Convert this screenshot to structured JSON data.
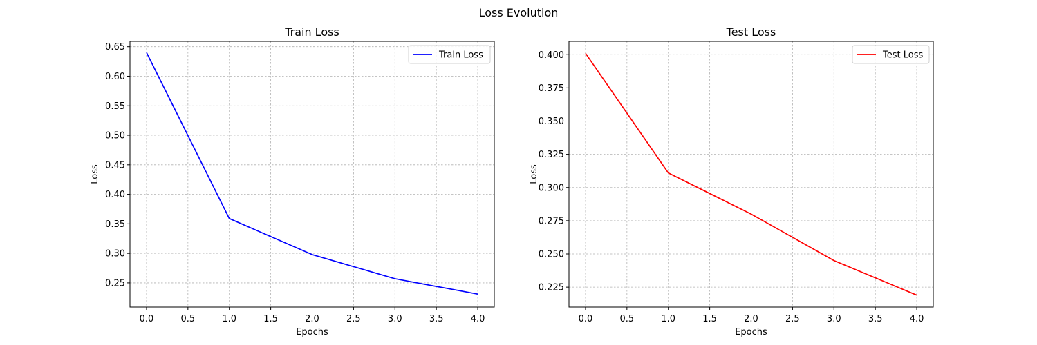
{
  "figure": {
    "title": "Loss Evolution"
  },
  "chart_data": [
    {
      "type": "line",
      "title": "Train Loss",
      "xlabel": "Epochs",
      "ylabel": "Loss",
      "xlim": [
        -0.2,
        4.2
      ],
      "ylim": [
        0.209,
        0.659
      ],
      "xticks": [
        0.0,
        0.5,
        1.0,
        1.5,
        2.0,
        2.5,
        3.0,
        3.5,
        4.0
      ],
      "xtick_labels": [
        "0.0",
        "0.5",
        "1.0",
        "1.5",
        "2.0",
        "2.5",
        "3.0",
        "3.5",
        "4.0"
      ],
      "yticks": [
        0.25,
        0.3,
        0.35,
        0.4,
        0.45,
        0.5,
        0.55,
        0.6,
        0.65
      ],
      "ytick_labels": [
        "0.25",
        "0.30",
        "0.35",
        "0.40",
        "0.45",
        "0.50",
        "0.55",
        "0.60",
        "0.65"
      ],
      "grid": true,
      "legend_position": "top-right",
      "series": [
        {
          "name": "Train Loss",
          "color": "#0000ff",
          "x": [
            0,
            1,
            2,
            3,
            4
          ],
          "y": [
            0.64,
            0.359,
            0.298,
            0.257,
            0.231
          ]
        }
      ]
    },
    {
      "type": "line",
      "title": "Test Loss",
      "xlabel": "Epochs",
      "ylabel": "Loss",
      "xlim": [
        -0.2,
        4.2
      ],
      "ylim": [
        0.21,
        0.41
      ],
      "xticks": [
        0.0,
        0.5,
        1.0,
        1.5,
        2.0,
        2.5,
        3.0,
        3.5,
        4.0
      ],
      "xtick_labels": [
        "0.0",
        "0.5",
        "1.0",
        "1.5",
        "2.0",
        "2.5",
        "3.0",
        "3.5",
        "4.0"
      ],
      "yticks": [
        0.225,
        0.25,
        0.275,
        0.3,
        0.325,
        0.35,
        0.375,
        0.4
      ],
      "ytick_labels": [
        "0.225",
        "0.250",
        "0.275",
        "0.300",
        "0.325",
        "0.350",
        "0.375",
        "0.400"
      ],
      "grid": true,
      "legend_position": "top-right",
      "series": [
        {
          "name": "Test Loss",
          "color": "#ff0000",
          "x": [
            0,
            1,
            2,
            3,
            4
          ],
          "y": [
            0.401,
            0.311,
            0.28,
            0.245,
            0.219
          ]
        }
      ]
    }
  ]
}
